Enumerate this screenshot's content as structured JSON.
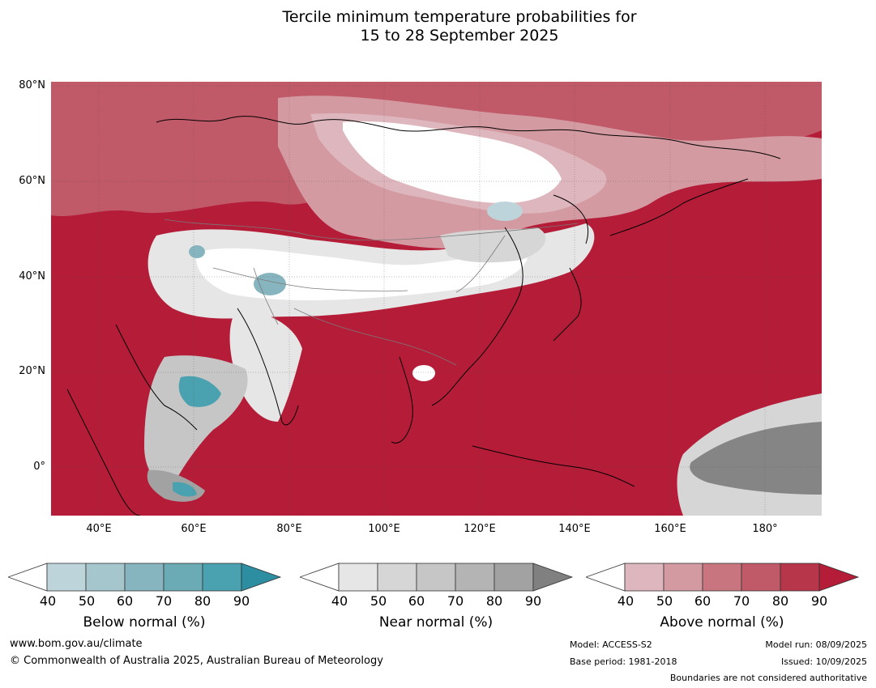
{
  "title": {
    "line1": "Tercile minimum temperature probabilities for",
    "line2": "15 to 28 September 2025"
  },
  "axes": {
    "lat_labels": [
      "80°N",
      "60°N",
      "40°N",
      "20°N",
      "0°"
    ],
    "lon_labels": [
      "40°E",
      "60°E",
      "80°E",
      "100°E",
      "120°E",
      "140°E",
      "160°E",
      "180°"
    ],
    "lat_range": [
      -10,
      81
    ],
    "lon_range": [
      30,
      192
    ]
  },
  "legends": [
    {
      "title": "Below normal (%)",
      "ticks": [
        "40",
        "50",
        "60",
        "70",
        "80",
        "90"
      ],
      "colors": [
        "#ffffff",
        "#bed4db",
        "#a5c6cc",
        "#87b5bf",
        "#6aabb6",
        "#4aa1b0",
        "#2c8ea0"
      ]
    },
    {
      "title": "Near normal (%)",
      "ticks": [
        "40",
        "50",
        "60",
        "70",
        "80",
        "90"
      ],
      "colors": [
        "#ffffff",
        "#e6e6e6",
        "#d6d6d6",
        "#c6c6c6",
        "#b4b4b4",
        "#a2a2a2",
        "#808080"
      ]
    },
    {
      "title": "Above normal (%)",
      "ticks": [
        "40",
        "50",
        "60",
        "70",
        "80",
        "90"
      ],
      "colors": [
        "#ffffff",
        "#deb6bd",
        "#d49aa2",
        "#c87580",
        "#c05a68",
        "#b8364a",
        "#b51c38"
      ]
    }
  ],
  "footer": {
    "website": "www.bom.gov.au/climate",
    "copyright": "© Commonwealth of Australia 2025, Australian Bureau of Meteorology",
    "model": "Model: ACCESS-S2",
    "base_period": "Base period: 1981-2018",
    "model_run": "Model run: 08/09/2025",
    "issued": "Issued: 10/09/2025",
    "disclaimer": "Boundaries are not considered authoritative"
  },
  "colors": {
    "above_dominant": "#b51c38",
    "near_dark": "#858585",
    "below_dark": "#2c8ea0"
  }
}
